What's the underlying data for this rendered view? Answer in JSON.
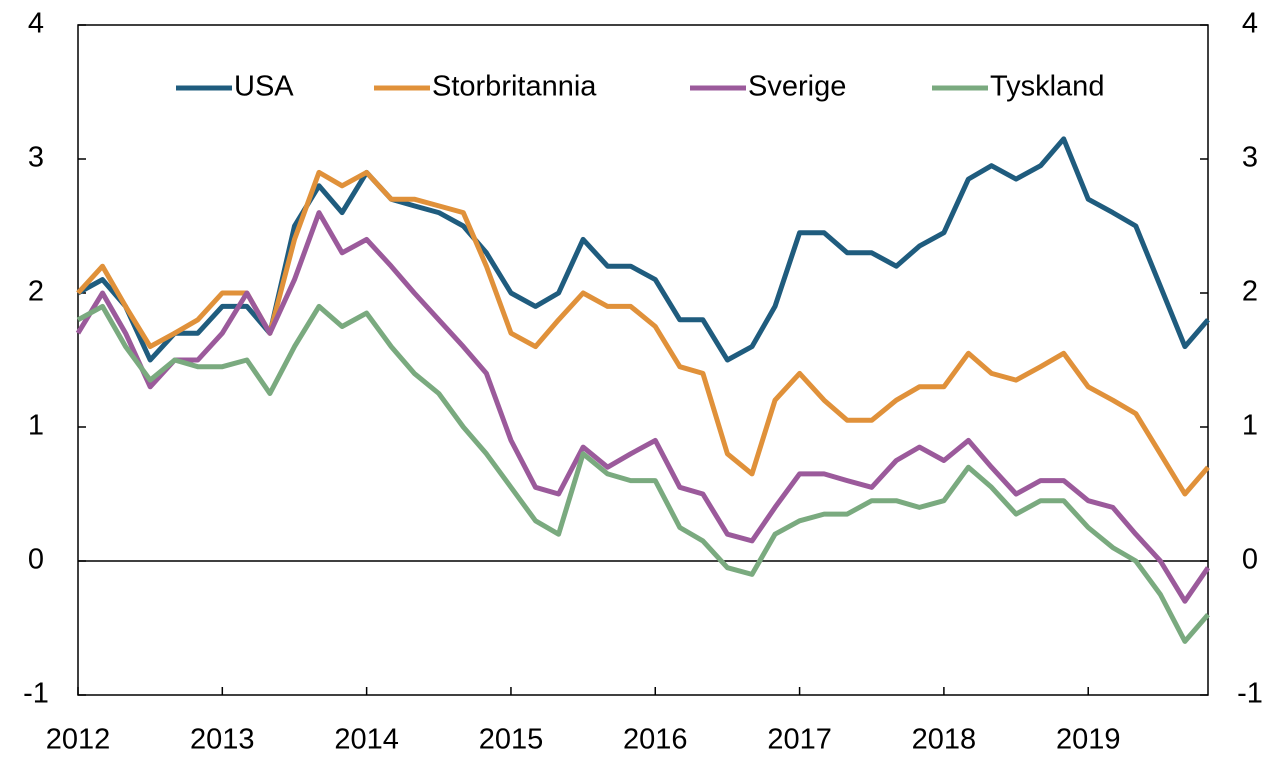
{
  "chart_data": {
    "type": "line",
    "x": [
      2012,
      2012.17,
      2012.33,
      2012.5,
      2012.67,
      2012.83,
      2013,
      2013.17,
      2013.33,
      2013.5,
      2013.67,
      2013.83,
      2014,
      2014.17,
      2014.33,
      2014.5,
      2014.67,
      2014.83,
      2015,
      2015.17,
      2015.33,
      2015.5,
      2015.67,
      2015.83,
      2016,
      2016.17,
      2016.33,
      2016.5,
      2016.67,
      2016.83,
      2017,
      2017.17,
      2017.33,
      2017.5,
      2017.67,
      2017.83,
      2018,
      2018.17,
      2018.33,
      2018.5,
      2018.67,
      2018.83,
      2019,
      2019.17,
      2019.33,
      2019.5,
      2019.67,
      2019.83
    ],
    "series": [
      {
        "name": "USA",
        "color": "#1f5c7e",
        "values": [
          2.0,
          2.1,
          1.9,
          1.5,
          1.7,
          1.7,
          1.9,
          1.9,
          1.7,
          2.5,
          2.8,
          2.6,
          2.9,
          2.7,
          2.65,
          2.6,
          2.5,
          2.3,
          2.0,
          1.9,
          2.0,
          2.4,
          2.2,
          2.2,
          2.1,
          1.8,
          1.8,
          1.5,
          1.6,
          1.9,
          2.45,
          2.45,
          2.3,
          2.3,
          2.2,
          2.35,
          2.45,
          2.85,
          2.95,
          2.85,
          2.95,
          3.15,
          2.7,
          2.6,
          2.5,
          2.05,
          1.6,
          1.8
        ]
      },
      {
        "name": "Storbritannia",
        "color": "#e0913a",
        "values": [
          2.0,
          2.2,
          1.9,
          1.6,
          1.7,
          1.8,
          2.0,
          2.0,
          1.7,
          2.4,
          2.9,
          2.8,
          2.9,
          2.7,
          2.7,
          2.65,
          2.6,
          2.2,
          1.7,
          1.6,
          1.8,
          2.0,
          1.9,
          1.9,
          1.75,
          1.45,
          1.4,
          0.8,
          0.65,
          1.2,
          1.4,
          1.2,
          1.05,
          1.05,
          1.2,
          1.3,
          1.3,
          1.55,
          1.4,
          1.35,
          1.45,
          1.55,
          1.3,
          1.2,
          1.1,
          0.8,
          0.5,
          0.7
        ]
      },
      {
        "name": "Sverige",
        "color": "#9b5a9b",
        "values": [
          1.7,
          2.0,
          1.7,
          1.3,
          1.5,
          1.5,
          1.7,
          2.0,
          1.7,
          2.1,
          2.6,
          2.3,
          2.4,
          2.2,
          2.0,
          1.8,
          1.6,
          1.4,
          0.9,
          0.55,
          0.5,
          0.85,
          0.7,
          0.8,
          0.9,
          0.55,
          0.5,
          0.2,
          0.15,
          0.4,
          0.65,
          0.65,
          0.6,
          0.55,
          0.75,
          0.85,
          0.75,
          0.9,
          0.7,
          0.5,
          0.6,
          0.6,
          0.45,
          0.4,
          0.2,
          0.0,
          -0.3,
          -0.05
        ]
      },
      {
        "name": "Tyskland",
        "color": "#7aaa7f",
        "values": [
          1.8,
          1.9,
          1.6,
          1.35,
          1.5,
          1.45,
          1.45,
          1.5,
          1.25,
          1.6,
          1.9,
          1.75,
          1.85,
          1.6,
          1.4,
          1.25,
          1.0,
          0.8,
          0.55,
          0.3,
          0.2,
          0.8,
          0.65,
          0.6,
          0.6,
          0.25,
          0.15,
          -0.05,
          -0.1,
          0.2,
          0.3,
          0.35,
          0.35,
          0.45,
          0.45,
          0.4,
          0.45,
          0.7,
          0.55,
          0.35,
          0.45,
          0.45,
          0.25,
          0.1,
          0.0,
          -0.25,
          -0.6,
          -0.4
        ]
      }
    ],
    "xlim": [
      2012,
      2019.83
    ],
    "xticks": [
      2012,
      2013,
      2014,
      2015,
      2016,
      2017,
      2018,
      2019
    ],
    "ylim": [
      -1,
      4
    ],
    "yticks": [
      -1,
      0,
      1,
      2,
      3,
      4
    ],
    "zero_line": true
  }
}
